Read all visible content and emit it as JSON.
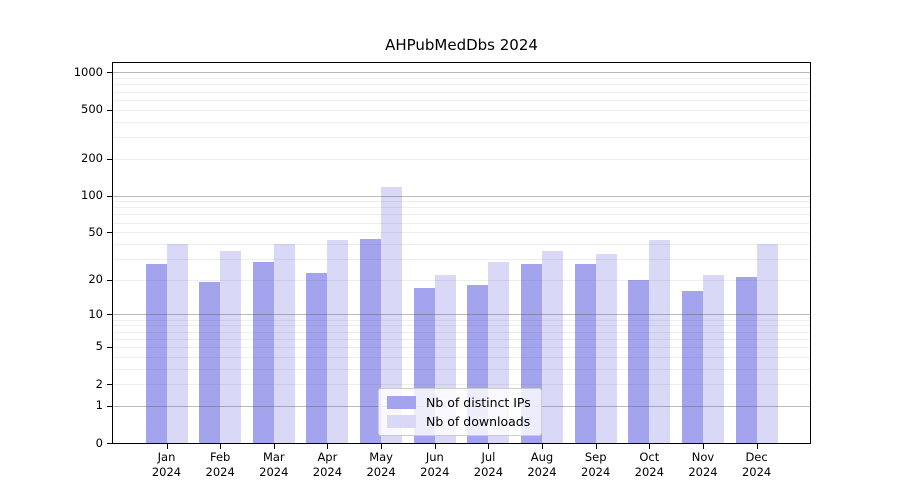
{
  "chart_data": {
    "type": "bar",
    "title": "AHPubMedDbs 2024",
    "categories": [
      "Jan 2024",
      "Feb 2024",
      "Mar 2024",
      "Apr 2024",
      "May 2024",
      "Jun 2024",
      "Jul 2024",
      "Aug 2024",
      "Sep 2024",
      "Oct 2024",
      "Nov 2024",
      "Dec 2024"
    ],
    "series": [
      {
        "name": "Nb of distinct IPs",
        "color": "#a3a3ee",
        "values": [
          27,
          19,
          28,
          23,
          44,
          17,
          18,
          27,
          27,
          20,
          16,
          21
        ]
      },
      {
        "name": "Nb of downloads",
        "color": "#d9d9f7",
        "values": [
          40,
          35,
          40,
          43,
          118,
          22,
          28,
          35,
          33,
          43,
          22,
          40
        ]
      }
    ],
    "xlabel": "",
    "ylabel": "",
    "yscale": "log1p",
    "yticks": [
      0,
      1,
      2,
      5,
      10,
      20,
      50,
      100,
      200,
      500,
      1000
    ],
    "major_grid_values": [
      1,
      10,
      100,
      1000
    ],
    "minor_grid_values": [
      2,
      3,
      4,
      5,
      6,
      7,
      8,
      9,
      20,
      30,
      40,
      50,
      60,
      70,
      80,
      90,
      200,
      300,
      400,
      500,
      600,
      700,
      800,
      900
    ],
    "ylim": [
      0,
      1190
    ],
    "grid": true,
    "legend_position": "lower center"
  },
  "legend": {
    "items": [
      {
        "label": "Nb of distinct IPs"
      },
      {
        "label": "Nb of downloads"
      }
    ]
  }
}
